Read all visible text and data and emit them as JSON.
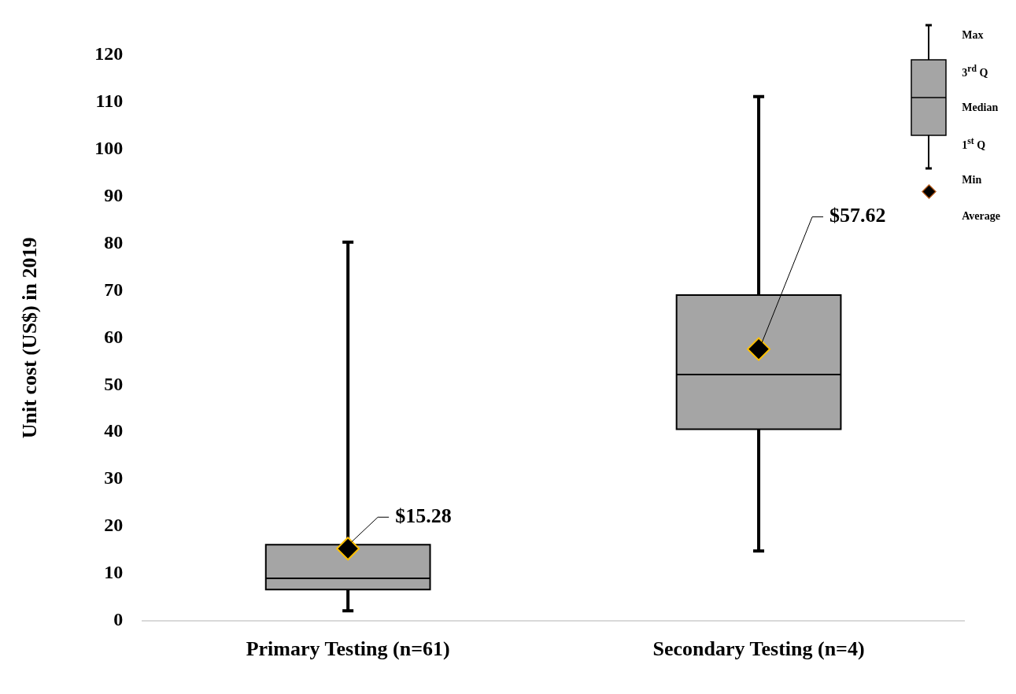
{
  "chart_data": {
    "type": "box",
    "ylabel": "Unit cost (US$) in 2019",
    "categories": [
      "Primary Testing (n=61)",
      "Secondary Testing (n=4)"
    ],
    "color": "#a5a5a5",
    "boxes": [
      {
        "low": 2.1,
        "q1": 6.6,
        "median": 9.0,
        "q3": 16.1,
        "high": 80.3
      },
      {
        "low": 14.8,
        "q1": 40.6,
        "median": 52.2,
        "q3": 69.1,
        "high": 111.2
      }
    ],
    "series": [
      {
        "name": "Average",
        "type": "scatter",
        "x": [
          "Primary Testing (n=61)",
          "Secondary Testing (n=4)"
        ],
        "values": [
          15.28,
          57.62
        ],
        "color": "#000000",
        "value_labels": [
          "$15.28",
          "$57.62"
        ]
      }
    ],
    "marker": "diamond",
    "ylim": [
      0,
      120
    ],
    "yticks": [
      0,
      10,
      20,
      30,
      40,
      50,
      60,
      70,
      80,
      90,
      100,
      110,
      120
    ],
    "grid": false,
    "legend": "top right",
    "annotations": [
      "Max",
      "3$^{rd}$ Q",
      "Median",
      "1$^{st}$ Q",
      "Min"
    ]
  }
}
